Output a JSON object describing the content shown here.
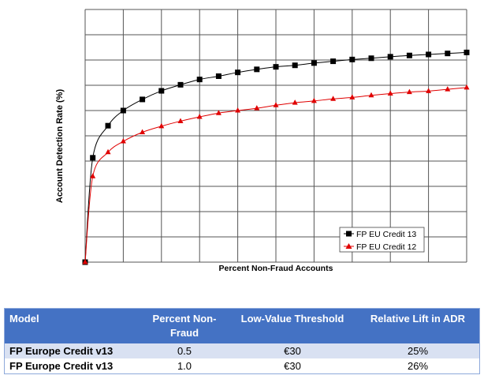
{
  "chart_data": {
    "type": "line",
    "title": "",
    "xlabel": "Percent Non-Fraud Accounts",
    "ylabel": "Account Detection Rate (%)",
    "xlim": [
      0,
      10
    ],
    "ylim": [
      0,
      10
    ],
    "grid": true,
    "tick_labels_shown": false,
    "legend_placement": "bottom-right",
    "x": [
      0,
      0.2,
      0.6,
      1,
      1.5,
      2,
      2.5,
      3,
      3.5,
      4,
      4.5,
      5,
      5.5,
      6,
      6.5,
      7,
      7.5,
      8,
      8.5,
      9,
      9.5,
      10
    ],
    "series": [
      {
        "name": "FP EU Credit 13",
        "color": "#000000",
        "marker": "square",
        "values": [
          0,
          4.13,
          5.4,
          6.0,
          6.44,
          6.78,
          7.02,
          7.23,
          7.36,
          7.51,
          7.63,
          7.73,
          7.79,
          7.88,
          7.95,
          8.02,
          8.07,
          8.13,
          8.18,
          8.22,
          8.26,
          8.3
        ]
      },
      {
        "name": "FP EU Credit 12",
        "color": "#E00000",
        "marker": "triangle",
        "values": [
          0,
          3.4,
          4.35,
          4.78,
          5.14,
          5.38,
          5.58,
          5.75,
          5.9,
          6.0,
          6.09,
          6.21,
          6.31,
          6.38,
          6.46,
          6.52,
          6.6,
          6.67,
          6.73,
          6.77,
          6.84,
          6.91
        ]
      }
    ]
  },
  "table": {
    "header_color": "#4472C4",
    "stripe_color": "#D9E1F2",
    "headers": [
      "Model",
      "Percent Non-Fraud",
      "Low-Value Threshold",
      "Relative Lift in ADR"
    ],
    "rows": [
      [
        "FP Europe Credit v13",
        "0.5",
        "€30",
        "25%"
      ],
      [
        "FP Europe Credit v13",
        "1.0",
        "€30",
        "26%"
      ]
    ]
  }
}
